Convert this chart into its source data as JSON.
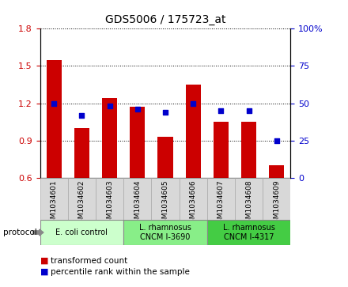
{
  "title": "GDS5006 / 175723_at",
  "samples": [
    "GSM1034601",
    "GSM1034602",
    "GSM1034603",
    "GSM1034604",
    "GSM1034605",
    "GSM1034606",
    "GSM1034607",
    "GSM1034608",
    "GSM1034609"
  ],
  "transformed_counts": [
    1.55,
    1.0,
    1.24,
    1.17,
    0.93,
    1.35,
    1.05,
    1.05,
    0.7
  ],
  "percentile_ranks": [
    50,
    42,
    48,
    46,
    44,
    50,
    45,
    45,
    25
  ],
  "ylim_left": [
    0.6,
    1.8
  ],
  "ylim_right": [
    0,
    100
  ],
  "yticks_left": [
    0.6,
    0.9,
    1.2,
    1.5,
    1.8
  ],
  "yticks_right": [
    0,
    25,
    50,
    75,
    100
  ],
  "bar_color": "#cc0000",
  "dot_color": "#0000cc",
  "bar_bottom": 0.6,
  "groups": [
    {
      "label": "E. coli control",
      "indices": [
        0,
        1,
        2
      ],
      "color": "#ccffcc"
    },
    {
      "label": "L. rhamnosus\nCNCM I-3690",
      "indices": [
        3,
        4,
        5
      ],
      "color": "#88ee88"
    },
    {
      "label": "L. rhamnosus\nCNCM I-4317",
      "indices": [
        6,
        7,
        8
      ],
      "color": "#44cc44"
    }
  ],
  "legend_bar_label": "transformed count",
  "legend_dot_label": "percentile rank within the sample",
  "protocol_label": "protocol",
  "sample_box_color": "#d8d8d8",
  "ylabel_left_color": "#cc0000",
  "ylabel_right_color": "#0000cc"
}
